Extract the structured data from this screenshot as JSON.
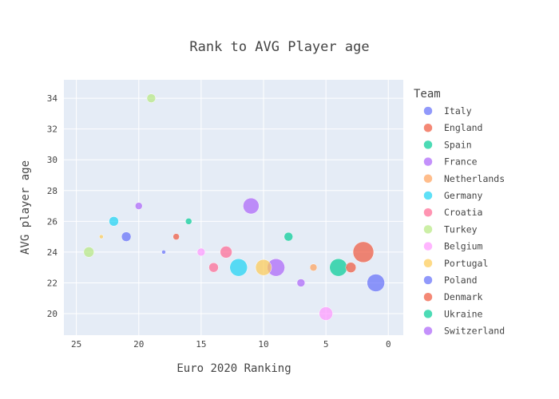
{
  "chart_data": {
    "type": "scatter",
    "title": "Rank to AVG Player age",
    "xlabel": "Euro 2020 Ranking",
    "ylabel": "AVG player age",
    "xlim": [
      26,
      -1.2
    ],
    "ylim": [
      18.6,
      35.2
    ],
    "x_reversed": true,
    "x_ticks": [
      25,
      20,
      15,
      10,
      5,
      0
    ],
    "y_ticks": [
      20,
      22,
      24,
      26,
      28,
      30,
      32,
      34
    ],
    "grid": true,
    "legend_title": "Team",
    "legend_position": "right",
    "series": [
      {
        "name": "Italy",
        "color": "#636efa",
        "x": 1,
        "y": 22,
        "size": 11
      },
      {
        "name": "England",
        "color": "#EF553B",
        "x": 2,
        "y": 24,
        "size": 13
      },
      {
        "name": "Spain",
        "color": "#00cc96",
        "x": 4,
        "y": 23,
        "size": 11
      },
      {
        "name": "France",
        "color": "#ab63fa",
        "x": 7,
        "y": 22,
        "size": 5
      },
      {
        "name": "Netherlands",
        "color": "#FFA15A",
        "x": 6,
        "y": 23,
        "size": 4.5
      },
      {
        "name": "Germany",
        "color": "#19d3f3",
        "x": 12,
        "y": 23,
        "size": 11
      },
      {
        "name": "Croatia",
        "color": "#FF6692",
        "x": 13,
        "y": 24,
        "size": 7.5
      },
      {
        "name": "Turkey",
        "color": "#B6E880",
        "x": 24,
        "y": 24,
        "size": 6.5
      },
      {
        "name": "Belgium",
        "color": "#FF97FF",
        "x": 5,
        "y": 20,
        "size": 8.5
      },
      {
        "name": "Portugal",
        "color": "#FECB52",
        "x": 10,
        "y": 23,
        "size": 10
      },
      {
        "name": "Poland",
        "color": "#636efa",
        "x": 21,
        "y": 25,
        "size": 6
      },
      {
        "name": "Denmark",
        "color": "#EF553B",
        "x": 3,
        "y": 23,
        "size": 6.5
      },
      {
        "name": "Ukraine",
        "color": "#00cc96",
        "x": 8,
        "y": 25,
        "size": 5.5
      },
      {
        "name": "Switzerland",
        "color": "#ab63fa",
        "x": 9,
        "y": 23,
        "size": 11
      }
    ],
    "extra_points": [
      {
        "team_index": 13,
        "x": 20,
        "y": 27,
        "size": 4.5
      },
      {
        "team_index": 7,
        "x": 19,
        "y": 34,
        "size": 5.5
      },
      {
        "team_index": 5,
        "x": 22,
        "y": 26,
        "size": 6
      },
      {
        "team_index": 1,
        "x": 17,
        "y": 25,
        "size": 4
      },
      {
        "team_index": 2,
        "x": 16,
        "y": 26,
        "size": 4
      },
      {
        "team_index": 0,
        "x": 18,
        "y": 24,
        "size": 2.5
      },
      {
        "team_index": 9,
        "x": 23,
        "y": 25,
        "size": 2.5
      },
      {
        "team_index": 8,
        "x": 15,
        "y": 24,
        "size": 5
      },
      {
        "team_index": 6,
        "x": 14,
        "y": 23,
        "size": 6
      },
      {
        "team_index": 3,
        "x": 11,
        "y": 27,
        "size": 10
      }
    ]
  }
}
